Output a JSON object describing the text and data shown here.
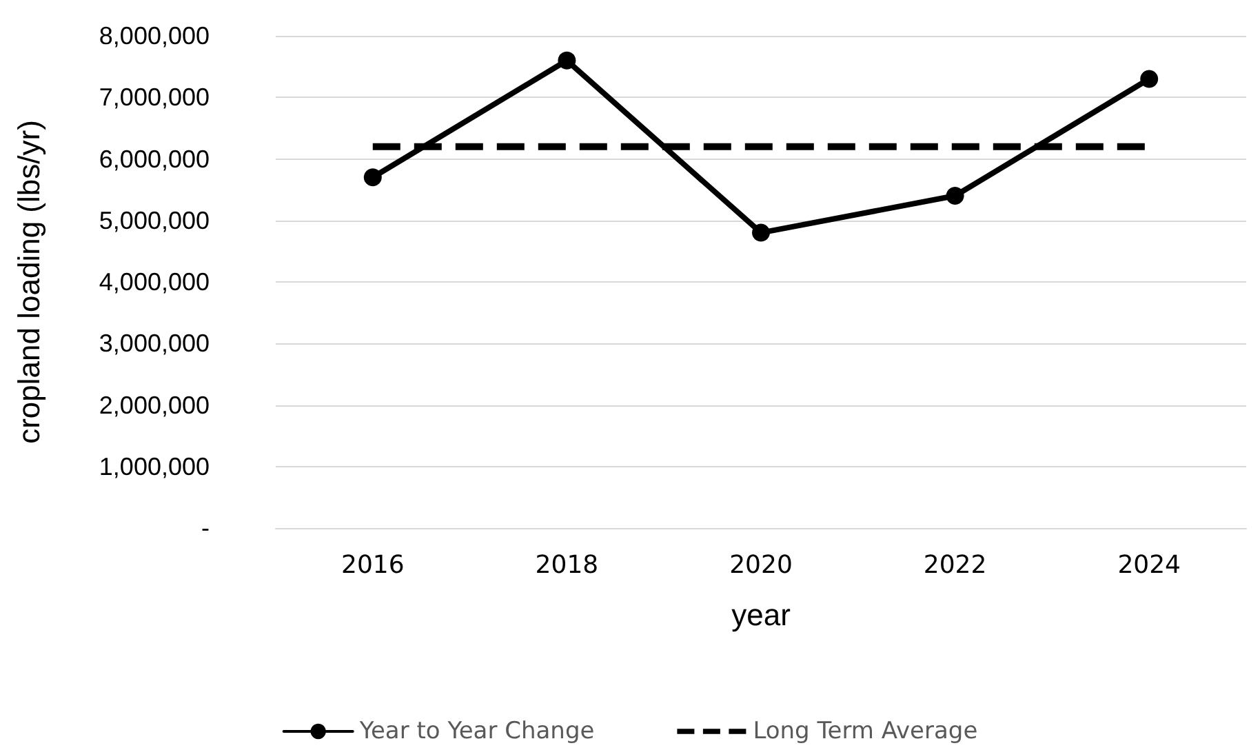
{
  "chart_data": {
    "type": "line",
    "xlabel": "year",
    "ylabel": "cropland loading (lbs/yr)",
    "categories": [
      "2016",
      "2018",
      "2020",
      "2022",
      "2024"
    ],
    "series": [
      {
        "name": "Year to Year Change",
        "color": "#000000",
        "values": [
          5700000,
          7600000,
          4800000,
          5400000,
          7300000
        ],
        "marker": "circle",
        "line_style": "solid"
      },
      {
        "name": "Long Term Average",
        "color": "#000000",
        "values": [
          6200000,
          6200000,
          6200000,
          6200000,
          6200000
        ],
        "marker": "none",
        "line_style": "dashed"
      }
    ],
    "ylim": [
      0,
      8000000
    ],
    "yticks": [
      {
        "value": 0,
        "label": "-"
      },
      {
        "value": 1000000,
        "label": "1,000,000"
      },
      {
        "value": 2000000,
        "label": "2,000,000"
      },
      {
        "value": 3000000,
        "label": "3,000,000"
      },
      {
        "value": 4000000,
        "label": "4,000,000"
      },
      {
        "value": 5000000,
        "label": "5,000,000"
      },
      {
        "value": 6000000,
        "label": "6,000,000"
      },
      {
        "value": 7000000,
        "label": "7,000,000"
      },
      {
        "value": 8000000,
        "label": "8,000,000"
      }
    ],
    "grid": "y",
    "legend": "bottom"
  }
}
